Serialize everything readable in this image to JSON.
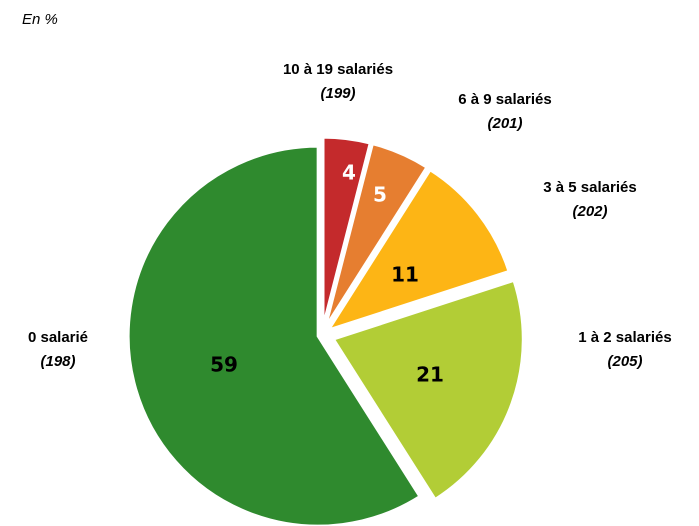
{
  "chart_data": {
    "type": "pie",
    "subtitle": "En %",
    "categories": [
      "10 à 19 salariés",
      "6 à 9 salariés",
      "3 à 5 salariés",
      "1 à 2 salariés",
      "0 salarié"
    ],
    "category_counts": [
      "(199)",
      "(201)",
      "(202)",
      "(205)",
      "(198)"
    ],
    "values": [
      4,
      5,
      11,
      21,
      59
    ],
    "colors": [
      "#c42a2c",
      "#e67e30",
      "#fdb515",
      "#b2cd36",
      "#2f8a2e"
    ]
  }
}
